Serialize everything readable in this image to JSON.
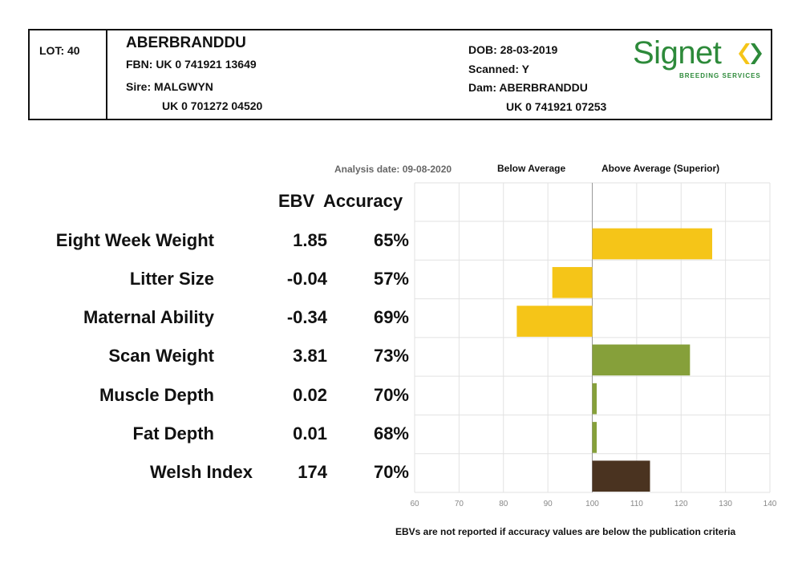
{
  "header": {
    "lot": "LOT: 40",
    "name": "ABERBRANDDU",
    "fbn": "FBN: UK 0 741921 13649",
    "sire": "Sire: MALGWYN",
    "sire_id": "UK 0 701272 04520",
    "dob": "DOB: 28-03-2019",
    "scanned": "Scanned: Y",
    "dam": "Dam: ABERBRANDDU",
    "dam_id": "UK 0 741921 07253",
    "logo_text": "Signet",
    "logo_sub": "BREEDING SERVICES"
  },
  "labels": {
    "analysis_date": "Analysis date: 09-08-2020",
    "below_average": "Below Average",
    "above_average": "Above Average (Superior)",
    "ebv_header": "EBV",
    "accuracy_header": "Accuracy",
    "footnote": "EBVs are not reported if accuracy values are below the publication criteria"
  },
  "rows": [
    {
      "trait": "Eight Week Weight",
      "ebv": "1.85",
      "accuracy": "65%"
    },
    {
      "trait": "Litter Size",
      "ebv": "-0.04",
      "accuracy": "57%"
    },
    {
      "trait": "Maternal Ability",
      "ebv": "-0.34",
      "accuracy": "69%"
    },
    {
      "trait": "Scan Weight",
      "ebv": "3.81",
      "accuracy": "73%"
    },
    {
      "trait": "Muscle Depth",
      "ebv": "0.02",
      "accuracy": "70%"
    },
    {
      "trait": "Fat Depth",
      "ebv": "0.01",
      "accuracy": "68%"
    },
    {
      "trait": "Welsh Index",
      "ebv": "174",
      "accuracy": "70%"
    }
  ],
  "chart_data": {
    "type": "bar",
    "orientation": "horizontal",
    "baseline": 100,
    "xlim": [
      60,
      140
    ],
    "xticks": [
      60,
      70,
      80,
      90,
      100,
      110,
      120,
      130,
      140
    ],
    "categories": [
      "Eight Week Weight",
      "Litter Size",
      "Maternal Ability",
      "Scan Weight",
      "Muscle Depth",
      "Fat Depth",
      "Welsh Index"
    ],
    "values": [
      127,
      91,
      83,
      122,
      101,
      101,
      113
    ],
    "colors": [
      "#f5c518",
      "#f5c518",
      "#f5c518",
      "#86a03a",
      "#86a03a",
      "#86a03a",
      "#4a3320"
    ],
    "grid": true
  }
}
